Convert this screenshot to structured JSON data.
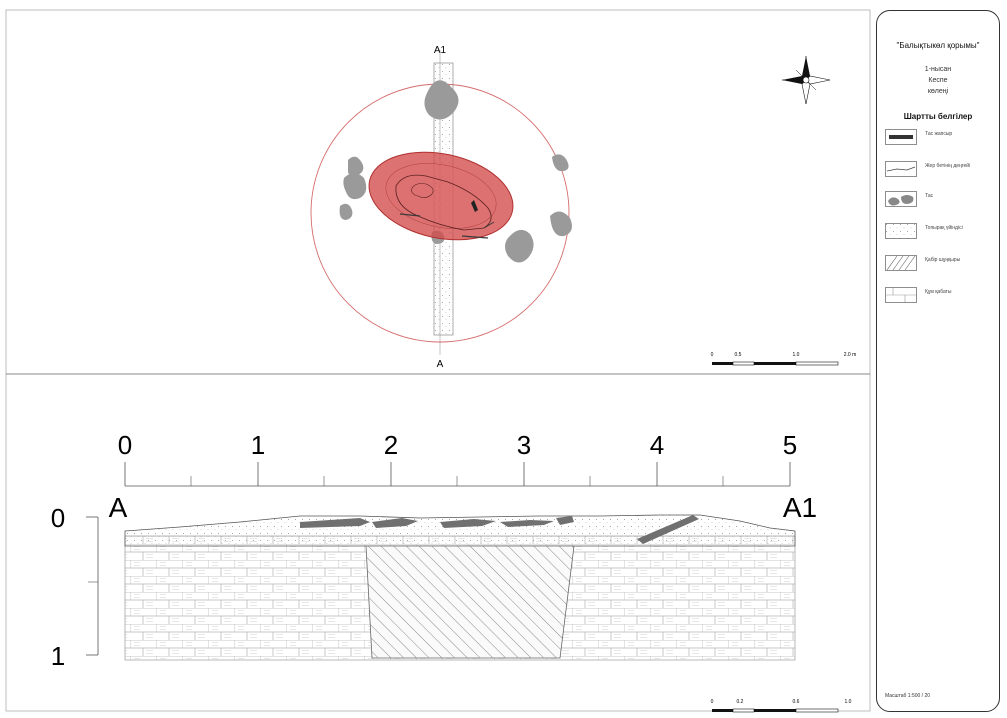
{
  "plan": {
    "label_top": "A1",
    "label_bottom": "A",
    "scalebar": {
      "ticks": [
        "0",
        "0.5",
        "1.0",
        "2.0 m"
      ]
    }
  },
  "section": {
    "ruler_labels": [
      "0",
      "1",
      "2",
      "3",
      "4",
      "5"
    ],
    "depth_labels": [
      "0",
      "1"
    ],
    "label_left": "A",
    "label_right": "A1",
    "scalebar": {
      "ticks": [
        "0",
        "0.2",
        "0.6",
        "1.0"
      ]
    }
  },
  "legend": {
    "title": "\"Балықтыкөл қорымы\"",
    "subtitle_lines": [
      "1-нысан",
      "Кеспе",
      "көлеңі"
    ],
    "heading": "Шартты белгілер",
    "items": [
      {
        "symbol": "dark-bar",
        "text": "Тас жапсыр"
      },
      {
        "symbol": "ground-line",
        "text": "Жер бетінің деңгейі"
      },
      {
        "symbol": "stones",
        "text": "Тас"
      },
      {
        "symbol": "dotted",
        "text": "Топырақ үйіндісі"
      },
      {
        "symbol": "hatch",
        "text": "Қабір шұңқыры"
      },
      {
        "symbol": "brick",
        "text": "Құм қабаты"
      }
    ],
    "footer": "Масштаб 1:500 / 20"
  },
  "colors": {
    "ellipse_fill": "#d24a4a",
    "ellipse_stroke": "#b03030",
    "circle_stroke": "#d66a6a",
    "stone": "#9a9a9a",
    "stone_bar": "#707070"
  },
  "icons": {
    "north_arrow": "compass-rose-icon"
  }
}
